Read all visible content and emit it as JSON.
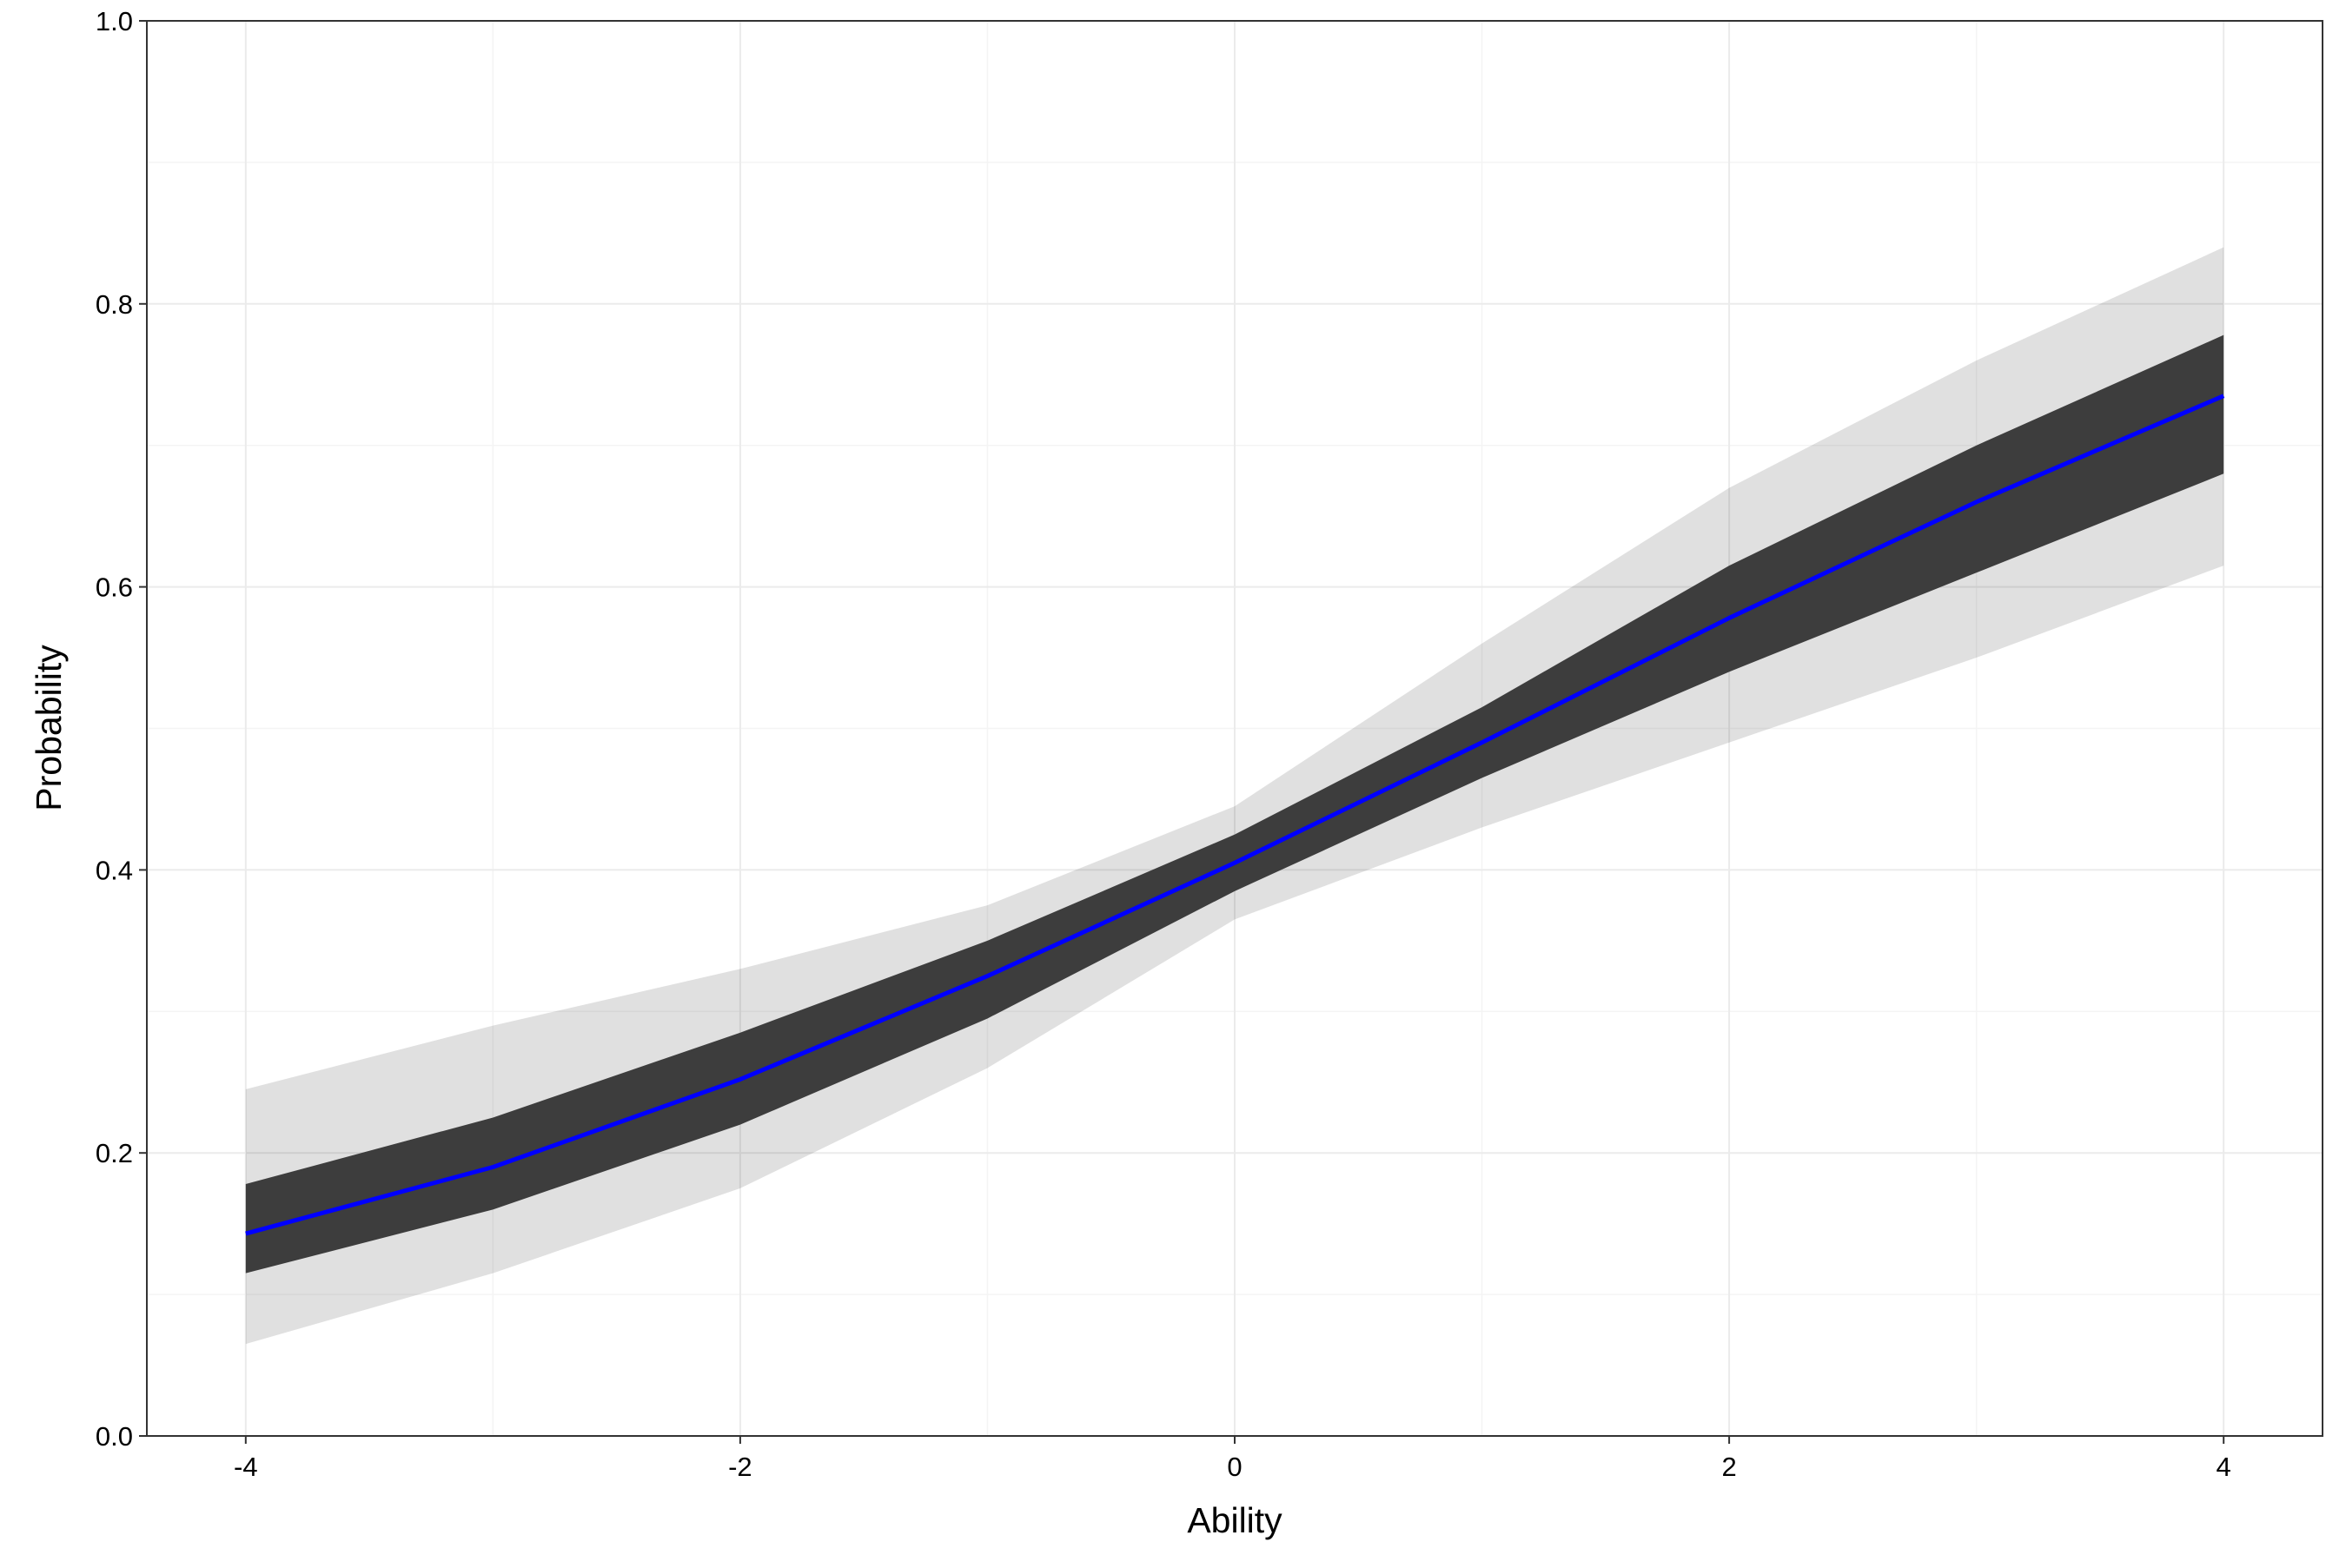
{
  "chart_data": {
    "type": "line",
    "x": [
      -4,
      -3,
      -2,
      -1,
      0,
      1,
      2,
      3,
      4
    ],
    "xlabel": "Ability",
    "ylabel": "Probability",
    "series": [
      {
        "color": "#0000ff",
        "values": [
          0.143,
          0.19,
          0.252,
          0.325,
          0.405,
          0.49,
          0.578,
          0.66,
          0.735
        ]
      }
    ],
    "bands": [
      {
        "color": "#000000",
        "opacity": 0.12,
        "lower": [
          0.065,
          0.115,
          0.175,
          0.26,
          0.365,
          0.43,
          0.49,
          0.55,
          0.615
        ],
        "upper": [
          0.245,
          0.29,
          0.33,
          0.375,
          0.445,
          0.56,
          0.67,
          0.76,
          0.84
        ]
      },
      {
        "color": "#3d3d3d",
        "opacity": 1,
        "lower": [
          0.115,
          0.16,
          0.22,
          0.295,
          0.385,
          0.465,
          0.54,
          0.61,
          0.68
        ],
        "upper": [
          0.178,
          0.225,
          0.285,
          0.35,
          0.425,
          0.515,
          0.615,
          0.7,
          0.778
        ]
      }
    ],
    "xlim": [
      -4.4,
      4.4
    ],
    "ylim": [
      0,
      1
    ],
    "xticks": [
      -4,
      -2,
      0,
      2,
      4
    ],
    "yticks": [
      {
        "value": 0,
        "label": "0.0"
      },
      0.2,
      0.4,
      0.6,
      0.8,
      {
        "value": 1,
        "label": "1.0"
      }
    ],
    "xminor": [
      -3,
      -1,
      1,
      3
    ],
    "yminor": [
      0.1,
      0.3,
      0.5,
      0.7,
      0.9
    ],
    "grid": true
  }
}
